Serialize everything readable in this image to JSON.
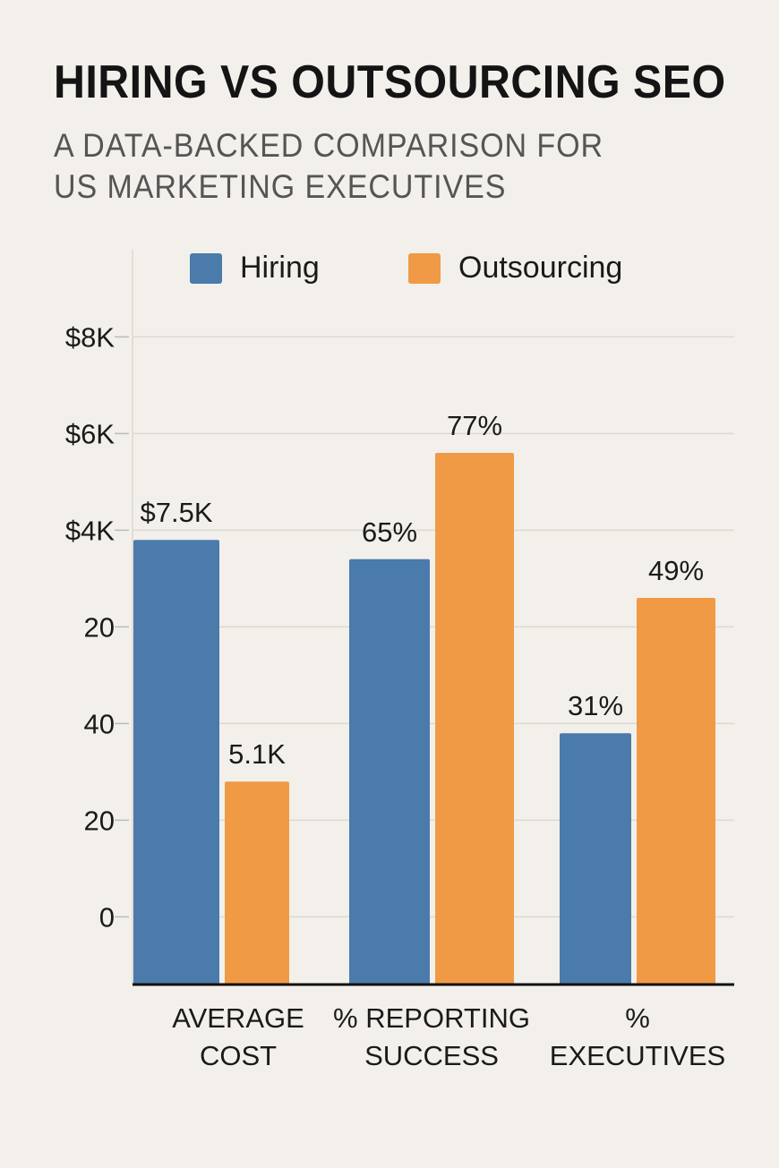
{
  "chart_data": {
    "type": "bar",
    "title": "HIRING VS OUTSOURCING SEO",
    "subtitle_lines": [
      "A DATA-BACKED COMPARISON FOR",
      "US MARKETING EXECUTIVES"
    ],
    "categories": [
      [
        "AVERAGE",
        "COST"
      ],
      [
        "% REPORTING",
        "SUCCESS"
      ],
      [
        "%",
        "EXECUTIVES"
      ]
    ],
    "series": [
      {
        "name": "Hiring",
        "color": "#4a7bab",
        "values": [
          3.9,
          3.7,
          1.9
        ],
        "labels": [
          "$7.5K",
          "65%",
          "31%"
        ]
      },
      {
        "name": "Outsourcing",
        "color": "#f09a45",
        "values": [
          1.4,
          4.8,
          3.3
        ],
        "labels": [
          "5.1K",
          "77%",
          "49%"
        ]
      }
    ],
    "yticks": [
      "$8K",
      "$6K",
      "$4K",
      "20",
      "40",
      "20",
      "0"
    ],
    "ylim": [
      -0.7,
      6.9
    ],
    "grid": true,
    "legend_position": "top"
  }
}
